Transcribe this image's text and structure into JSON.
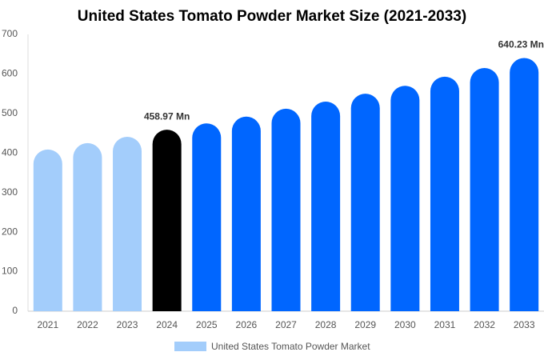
{
  "chart_data": {
    "type": "bar",
    "title": "United States Tomato Powder Market Size (2021-2033)",
    "categories": [
      "2021",
      "2022",
      "2023",
      "2024",
      "2025",
      "2026",
      "2027",
      "2028",
      "2029",
      "2030",
      "2031",
      "2032",
      "2033"
    ],
    "series": [
      {
        "name": "United States Tomato Powder Market",
        "color": "#a3cdfb",
        "values": [
          409,
          425,
          441,
          458.97,
          475,
          492,
          512,
          530,
          550,
          570,
          593,
          615,
          640.23
        ],
        "value_labels": [
          null,
          null,
          null,
          "458.97 Mn",
          null,
          null,
          null,
          null,
          null,
          null,
          null,
          null,
          "640.23 Mn"
        ],
        "colors": [
          "#a3cdfb",
          "#a3cdfb",
          "#a3cdfb",
          "#000000",
          "#0066ff",
          "#0066ff",
          "#0066ff",
          "#0066ff",
          "#0066ff",
          "#0066ff",
          "#0066ff",
          "#0066ff",
          "#0066ff"
        ]
      }
    ],
    "ylim": [
      0,
      700
    ],
    "yticks": [
      0,
      100,
      200,
      300,
      400,
      500,
      600,
      700
    ],
    "grid": false,
    "legend": "bottom"
  }
}
